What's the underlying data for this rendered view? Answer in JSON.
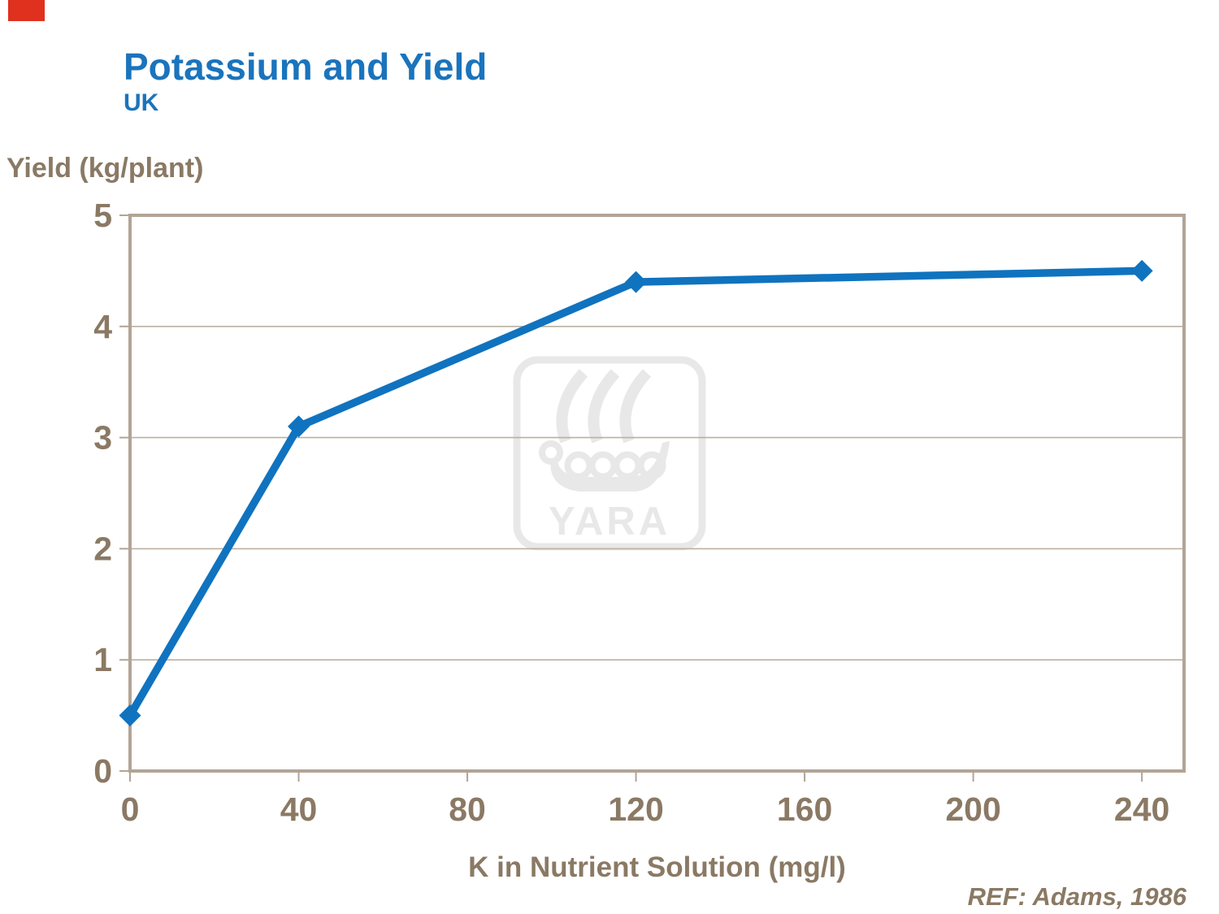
{
  "slide": {
    "title": "Potassium and Yield",
    "subtitle": "UK",
    "reference": "REF: Adams, 1986"
  },
  "chart_data": {
    "type": "line",
    "title": "Potassium and Yield",
    "subtitle": "UK",
    "x": [
      0,
      40,
      120,
      240
    ],
    "series": [
      {
        "name": "Yield",
        "values": [
          0.5,
          3.1,
          4.4,
          4.5
        ]
      }
    ],
    "xlabel": "K in Nutrient Solution (mg/l)",
    "ylabel": "Yield (kg/plant)",
    "xlim": [
      0,
      250
    ],
    "ylim": [
      0,
      5
    ],
    "x_ticks": [
      0,
      40,
      80,
      120,
      160,
      200,
      240
    ],
    "y_ticks": [
      0,
      1,
      2,
      3,
      4,
      5
    ],
    "grid": "horizontal",
    "legend": "none",
    "marker": "diamond",
    "line_color": "#1073bf",
    "axis_color": "#b2a496",
    "gridline_color": "#bbaf a1",
    "tick_label_color": "#8a7964"
  },
  "watermark": {
    "label": "YARA",
    "icon": "viking-ship-icon",
    "color": "#e8e8e8"
  },
  "colors": {
    "accent_red": "#e0301e",
    "title_blue": "#1a74bc",
    "text_brown": "#8a7964",
    "line_blue": "#1073bf",
    "axis_tan": "#b2a496",
    "grid_tan": "#bbafa1",
    "watermark_grey": "#e8e8e8"
  }
}
